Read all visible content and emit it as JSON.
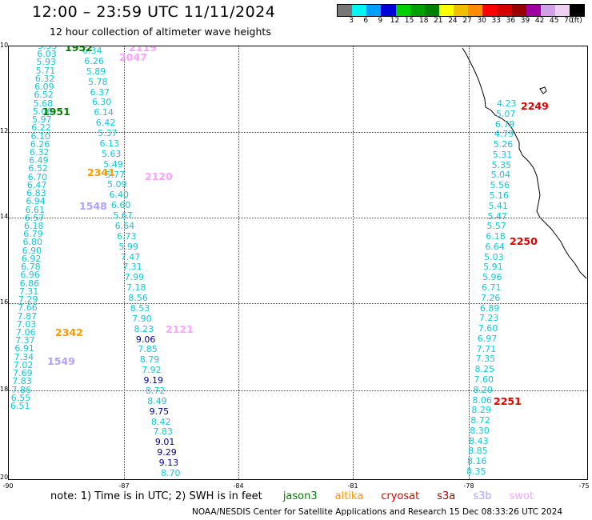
{
  "title": "12:00 – 23:59 UTC 11/11/2024",
  "subtitle": "12 hour collection of altimeter wave heights",
  "color_scale": {
    "unit_label": "(ft)",
    "colors": [
      "#777777",
      "#00f5f5",
      "#00a0ff",
      "#0000d8",
      "#00d000",
      "#00a000",
      "#008000",
      "#ffff00",
      "#f0c000",
      "#ff8c00",
      "#ff0000",
      "#d40000",
      "#980000",
      "#a000a0",
      "#d0a0e8",
      "#f0d0f0",
      "#000000"
    ],
    "labels": [
      "3",
      "6",
      "9",
      "12",
      "15",
      "18",
      "21",
      "24",
      "27",
      "30",
      "33",
      "36",
      "39",
      "42",
      "45",
      "70"
    ]
  },
  "axes": {
    "lat_labels": [
      "10",
      "12",
      "14",
      "16",
      "18",
      "20"
    ],
    "lon_labels": [
      "-90",
      "-87",
      "-84",
      "-81",
      "-78",
      "-75"
    ]
  },
  "satellite_colors": {
    "jason3": "#008000",
    "altika": "#ff9900",
    "cryosat": "#dd0000",
    "s3a": "#aa0000",
    "s3b": "#b0a0ff",
    "swot": "#ffa0ff",
    "other": "#10c8d8",
    "high": "#00009c"
  },
  "tracks": [
    {
      "name": "track-west",
      "color": "#10c8d8",
      "values": [
        "5.55",
        "6.03",
        "5.93",
        "5.71",
        "6.32",
        "6.09",
        "6.52",
        "5.68",
        "5.06",
        "5.97",
        "6.22",
        "6.10",
        "6.26",
        "6.32",
        "6.49",
        "6.52",
        "6.70",
        "6.47",
        "6.83",
        "6.94",
        "6.61",
        "6.57",
        "6.18",
        "6.79",
        "6.80",
        "6.90",
        "6.92",
        "6.78",
        "6.96",
        "6.86",
        "7.31",
        "7.29",
        "7.66",
        "7.87",
        "7.03",
        "7.06",
        "7.37",
        "6.91",
        "7.34",
        "7.02",
        "7.69",
        "7.83",
        "7.86",
        "6.55",
        "6.51"
      ]
    },
    {
      "name": "track-middle",
      "color": "#10c8d8",
      "values": [
        "6.34",
        "6.26",
        "5.89",
        "5.78",
        "6.37",
        "6.30",
        "6.14",
        "6.42",
        "5.37",
        "6.13",
        "5.63",
        "5.49",
        "5.77",
        "5.09",
        "6.40",
        "6.60",
        "5.67",
        "6.64",
        "6.73",
        "5.99",
        "7.47",
        "7.31",
        "7.99",
        "7.18",
        "8.56",
        "8.53",
        "7.90",
        "8.23",
        "9.06",
        "7.85",
        "8.79",
        "7.92",
        "9.19",
        "8.72",
        "8.49",
        "9.75",
        "8.42",
        "7.83",
        "9.01",
        "9.29",
        "9.13",
        "8.70"
      ]
    },
    {
      "name": "track-east",
      "color": "#10c8d8",
      "values": [
        "4.23",
        "5.07",
        "6.79",
        "4.79",
        "5.26",
        "5.31",
        "5.35",
        "5.04",
        "5.56",
        "5.16",
        "5.41",
        "5.47",
        "5.57",
        "6.18",
        "6.64",
        "5.03",
        "5.91",
        "5.96",
        "6.71",
        "7.26",
        "6.89",
        "7.23",
        "7.60",
        "6.97",
        "7.71",
        "7.35",
        "8.25",
        "7.60",
        "8.20",
        "8.06",
        "8.29",
        "8.72",
        "8.30",
        "8.43",
        "8.85",
        "8.16",
        "8.35"
      ]
    }
  ],
  "pass_times": [
    {
      "label": "1952",
      "color": "#008000"
    },
    {
      "label": "1951",
      "color": "#008000"
    },
    {
      "label": "2341",
      "color": "#ff9900"
    },
    {
      "label": "2342",
      "color": "#ff9900"
    },
    {
      "label": "1548",
      "color": "#b0a0ff"
    },
    {
      "label": "1549",
      "color": "#b0a0ff"
    },
    {
      "label": "2120",
      "color": "#ffa0ff"
    },
    {
      "label": "2121",
      "color": "#ffa0ff"
    },
    {
      "label": "2119",
      "color": "#ffa0ff"
    },
    {
      "label": "2047",
      "color": "#ffa0ff"
    },
    {
      "label": "2249",
      "color": "#dd0000"
    },
    {
      "label": "2250",
      "color": "#dd0000"
    },
    {
      "label": "2251",
      "color": "#dd0000"
    }
  ],
  "note": {
    "text": "note:  1) Time is in UTC; 2) SWH is in feet",
    "legend": [
      "jason3",
      "altika",
      "cryosat",
      "s3a",
      "s3b",
      "swot"
    ]
  },
  "credit": "NOAA/NESDIS Center for Satellite Applications and Research    15 Dec 08:33:26 UTC 2024"
}
